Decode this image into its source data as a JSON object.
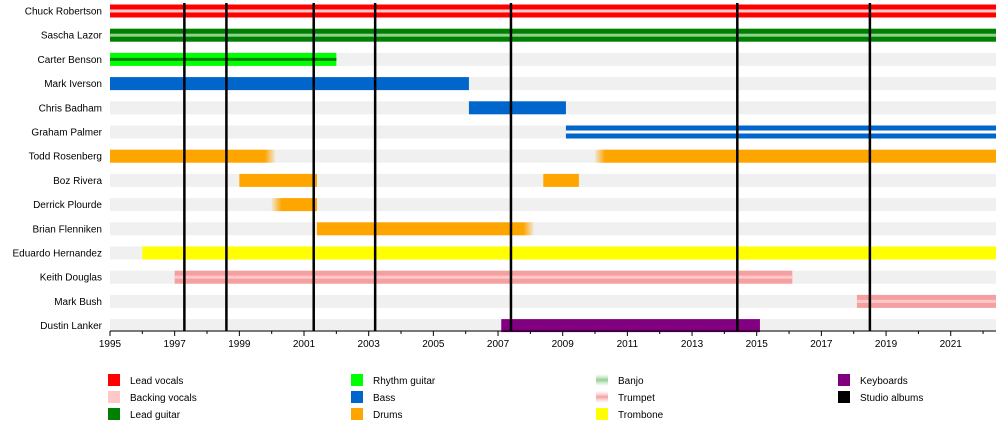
{
  "chart_data": {
    "type": "timeline",
    "title": "",
    "xlabel": "",
    "ylabel": "",
    "xlim": [
      1995,
      2022.4
    ],
    "x_ticks": [
      1995,
      1997,
      1999,
      2001,
      2003,
      2005,
      2007,
      2009,
      2011,
      2013,
      2015,
      2017,
      2019,
      2021
    ],
    "albums": [
      1997.3,
      1998.6,
      2001.3,
      2003.2,
      2007.4,
      2014.4,
      2018.5
    ],
    "members": [
      {
        "name": "Chuck Robertson",
        "bars": [
          {
            "start": 1995,
            "end": 2022.4,
            "role": "lead_vocals",
            "stripe": "backing_vocals"
          }
        ]
      },
      {
        "name": "Sascha Lazor",
        "bars": [
          {
            "start": 1995,
            "end": 2022.4,
            "role": "lead_guitar",
            "stripe": "banjo"
          }
        ]
      },
      {
        "name": "Carter Benson",
        "bars": [
          {
            "start": 1995,
            "end": 2002,
            "role": "rhythm_guitar",
            "stripe": "lead_guitar"
          }
        ]
      },
      {
        "name": "Mark Iverson",
        "bars": [
          {
            "start": 1995,
            "end": 2006.1,
            "role": "bass"
          }
        ]
      },
      {
        "name": "Chris Badham",
        "bars": [
          {
            "start": 2006.1,
            "end": 2009.1,
            "role": "bass"
          }
        ]
      },
      {
        "name": "Graham Palmer",
        "bars": [
          {
            "start": 2009.1,
            "end": 2022.4,
            "role": "bass",
            "stripe": "white"
          }
        ]
      },
      {
        "name": "Todd Rosenberg",
        "bars": [
          {
            "start": 1995,
            "end": 2000.1,
            "role": "drums",
            "fade": "end"
          },
          {
            "start": 2010,
            "end": 2022.4,
            "role": "drums",
            "fade": "start"
          }
        ]
      },
      {
        "name": "Boz Rivera",
        "bars": [
          {
            "start": 1999,
            "end": 2001.4,
            "role": "drums"
          },
          {
            "start": 2008.4,
            "end": 2009.5,
            "role": "drums"
          }
        ]
      },
      {
        "name": "Derrick Plourde",
        "bars": [
          {
            "start": 2000,
            "end": 2001.4,
            "role": "drums",
            "fade": "start"
          }
        ]
      },
      {
        "name": "Brian Flenniken",
        "bars": [
          {
            "start": 2001.4,
            "end": 2008.1,
            "role": "drums",
            "fade": "end"
          }
        ]
      },
      {
        "name": "Eduardo Hernandez",
        "bars": [
          {
            "start": 1996,
            "end": 2022.4,
            "role": "trombone"
          }
        ]
      },
      {
        "name": "Keith Douglas",
        "bars": [
          {
            "start": 1997,
            "end": 2016.1,
            "role": "trumpet",
            "stripe": "backing_vocals"
          }
        ]
      },
      {
        "name": "Mark Bush",
        "bars": [
          {
            "start": 2018.1,
            "end": 2022.4,
            "role": "trumpet",
            "stripe": "backing_vocals"
          }
        ]
      },
      {
        "name": "Dustin Lanker",
        "bars": [
          {
            "start": 2007.1,
            "end": 2015.1,
            "role": "keyboards"
          }
        ]
      }
    ],
    "legend": [
      {
        "key": "lead_vocals",
        "label": "Lead vocals",
        "color": "#ff0000"
      },
      {
        "key": "backing_vocals",
        "label": "Backing vocals",
        "color": "#ffc8c8"
      },
      {
        "key": "lead_guitar",
        "label": "Lead guitar",
        "color": "#008000"
      },
      {
        "key": "rhythm_guitar",
        "label": "Rhythm guitar",
        "color": "#00ff00"
      },
      {
        "key": "bass",
        "label": "Bass",
        "color": "#0066cc"
      },
      {
        "key": "drums",
        "label": "Drums",
        "color": "#ffa500"
      },
      {
        "key": "banjo",
        "label": "Banjo",
        "color": "#90d090"
      },
      {
        "key": "trumpet",
        "label": "Trumpet",
        "color": "#f4a0a0"
      },
      {
        "key": "trombone",
        "label": "Trombone",
        "color": "#ffff00"
      },
      {
        "key": "keyboards",
        "label": "Keyboards",
        "color": "#800080"
      },
      {
        "key": "albums",
        "label": "Studio albums",
        "color": "#000000"
      }
    ],
    "colors": {
      "lead_vocals": "#ff0000",
      "backing_vocals": "#ffc8c8",
      "lead_guitar": "#008000",
      "rhythm_guitar": "#00ff00",
      "bass": "#0066cc",
      "drums": "#ffa500",
      "banjo": "#90d090",
      "trumpet": "#f4a0a0",
      "trombone": "#ffff00",
      "keyboards": "#800080",
      "white": "#ffffff",
      "row_background": "#f0f0f0",
      "album_line": "#000000"
    }
  }
}
